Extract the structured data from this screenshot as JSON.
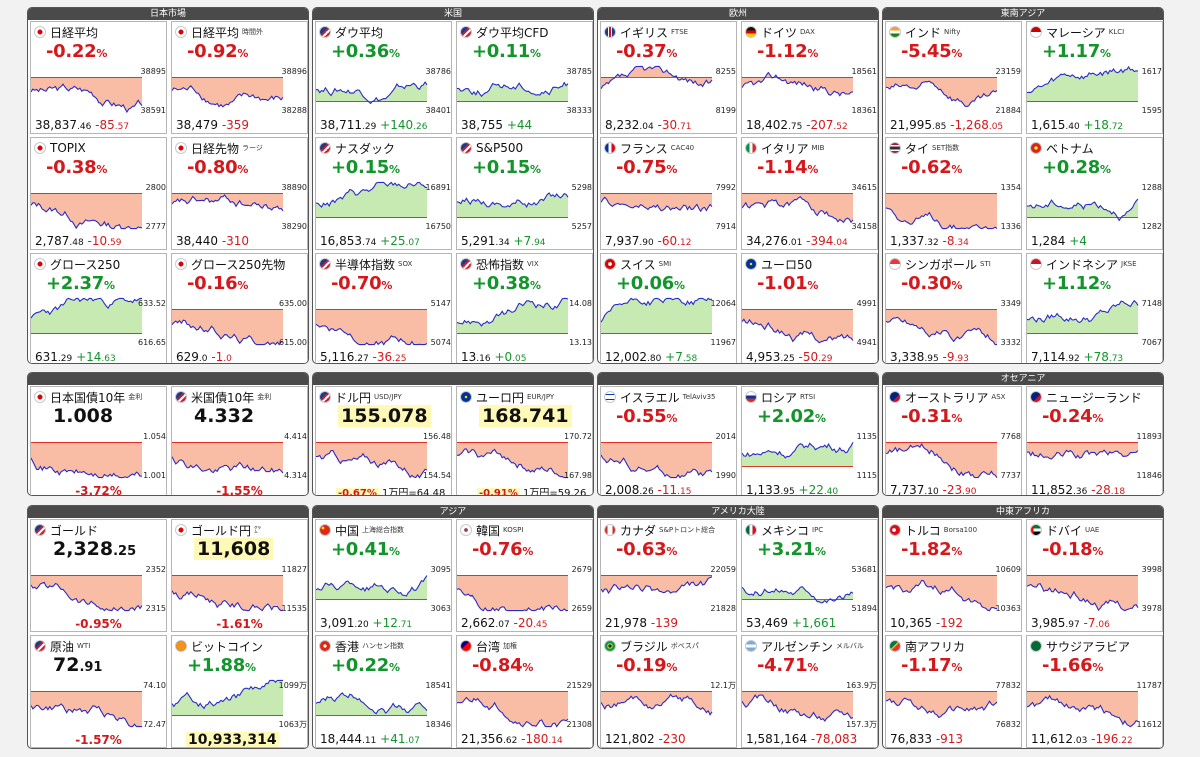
{
  "groups": [
    {
      "title": "日本市場",
      "cells": [
        {
          "name": "日経平均",
          "flag": "jp",
          "pct": "-0.22",
          "dir": "dn",
          "last_int": "38,837",
          "last_dec": ".46",
          "chg_int": "-85",
          "chg_dec": ".57",
          "ticks": [
            "38895",
            "38591"
          ]
        },
        {
          "name": "日経平均",
          "sub": "時間外",
          "flag": "jp",
          "pct": "-0.92",
          "dir": "dn",
          "last_int": "38,479",
          "last_dec": "",
          "chg_int": "-359",
          "chg_dec": "",
          "ticks": [
            "38896",
            "38288"
          ]
        },
        {
          "name": "TOPIX",
          "flag": "jp",
          "pct": "-0.38",
          "dir": "dn",
          "last_int": "2,787",
          "last_dec": ".48",
          "chg_int": "-10",
          "chg_dec": ".59",
          "ticks": [
            "2800",
            "2777"
          ]
        },
        {
          "name": "日経先物",
          "sub": "ラージ",
          "flag": "jp",
          "pct": "-0.80",
          "dir": "dn",
          "last_int": "38,440",
          "last_dec": "",
          "chg_int": "-310",
          "chg_dec": "",
          "ticks": [
            "38890",
            "38290"
          ]
        },
        {
          "name": "グロース250",
          "flag": "jp",
          "pct": "+2.37",
          "dir": "up",
          "last_int": "631",
          "last_dec": ".29",
          "chg_int": "+14",
          "chg_dec": ".63",
          "ticks": [
            "633.52",
            "616.65"
          ]
        },
        {
          "name": "グロース250先物",
          "flag": "jp",
          "pct": "-0.16",
          "dir": "dn",
          "last_int": "629",
          "last_dec": ".0",
          "chg_int": "-1",
          "chg_dec": ".0",
          "ticks": [
            "635.00",
            "615.00"
          ]
        }
      ]
    },
    {
      "title": "米国",
      "cells": [
        {
          "name": "ダウ平均",
          "flag": "us",
          "pct": "+0.36",
          "dir": "up",
          "last_int": "38,711",
          "last_dec": ".29",
          "chg_int": "+140",
          "chg_dec": ".26",
          "ticks": [
            "38786",
            "38401"
          ]
        },
        {
          "name": "ダウ平均CFD",
          "flag": "us",
          "pct": "+0.11",
          "dir": "up",
          "last_int": "38,755",
          "last_dec": "",
          "chg_int": "+44",
          "chg_dec": "",
          "ticks": [
            "38785",
            "38333"
          ]
        },
        {
          "name": "ナスダック",
          "flag": "us",
          "pct": "+0.15",
          "dir": "up",
          "last_int": "16,853",
          "last_dec": ".74",
          "chg_int": "+25",
          "chg_dec": ".07",
          "ticks": [
            "16891",
            "16750"
          ]
        },
        {
          "name": "S&P500",
          "flag": "us",
          "pct": "+0.15",
          "dir": "up",
          "last_int": "5,291",
          "last_dec": ".34",
          "chg_int": "+7",
          "chg_dec": ".94",
          "ticks": [
            "5298",
            "5257"
          ]
        },
        {
          "name": "半導体指数",
          "sub": "SOX",
          "flag": "us",
          "pct": "-0.70",
          "dir": "dn",
          "last_int": "5,116",
          "last_dec": ".27",
          "chg_int": "-36",
          "chg_dec": ".25",
          "ticks": [
            "5147",
            "5074"
          ]
        },
        {
          "name": "恐怖指数",
          "sub": "VIX",
          "flag": "us",
          "pct": "+0.38",
          "dir": "up",
          "last_int": "13",
          "last_dec": ".16",
          "chg_int": "+0",
          "chg_dec": ".05",
          "ticks": [
            "14.08",
            "13.13"
          ]
        }
      ]
    },
    {
      "title": "欧州",
      "cells": [
        {
          "name": "イギリス",
          "sub": "FTSE",
          "flag": "gb",
          "pct": "-0.37",
          "dir": "dn",
          "last_int": "8,232",
          "last_dec": ".04",
          "chg_int": "-30",
          "chg_dec": ".71",
          "ticks": [
            "8255",
            "8199"
          ]
        },
        {
          "name": "ドイツ",
          "sub": "DAX",
          "flag": "de",
          "pct": "-1.12",
          "dir": "dn",
          "last_int": "18,402",
          "last_dec": ".75",
          "chg_int": "-207",
          "chg_dec": ".52",
          "ticks": [
            "18561",
            "18361"
          ]
        },
        {
          "name": "フランス",
          "sub": "CAC40",
          "flag": "fr",
          "pct": "-0.75",
          "dir": "dn",
          "last_int": "7,937",
          "last_dec": ".90",
          "chg_int": "-60",
          "chg_dec": ".12",
          "ticks": [
            "7992",
            "7914"
          ]
        },
        {
          "name": "イタリア",
          "sub": "MIB",
          "flag": "it",
          "pct": "-1.14",
          "dir": "dn",
          "last_int": "34,276",
          "last_dec": ".01",
          "chg_int": "-394",
          "chg_dec": ".04",
          "ticks": [
            "34615",
            "34158"
          ]
        },
        {
          "name": "スイス",
          "sub": "SMI",
          "flag": "ch",
          "pct": "+0.06",
          "dir": "up",
          "last_int": "12,002",
          "last_dec": ".80",
          "chg_int": "+7",
          "chg_dec": ".58",
          "ticks": [
            "12064",
            "11967"
          ]
        },
        {
          "name": "ユーロ50",
          "flag": "eu",
          "pct": "-1.01",
          "dir": "dn",
          "last_int": "4,953",
          "last_dec": ".25",
          "chg_int": "-50",
          "chg_dec": ".29",
          "ticks": [
            "4991",
            "4941"
          ]
        }
      ]
    },
    {
      "title": "東南アジア",
      "cells": [
        {
          "name": "インド",
          "sub": "Nifty",
          "flag": "in",
          "pct": "-5.45",
          "dir": "dn",
          "last_int": "21,995",
          "last_dec": ".85",
          "chg_int": "-1,268",
          "chg_dec": ".05",
          "ticks": [
            "23159",
            "21884"
          ]
        },
        {
          "name": "マレーシア",
          "sub": "KLCI",
          "flag": "my",
          "pct": "+1.17",
          "dir": "up",
          "last_int": "1,615",
          "last_dec": ".40",
          "chg_int": "+18",
          "chg_dec": ".72",
          "ticks": [
            "1617",
            "1595"
          ]
        },
        {
          "name": "タイ",
          "sub": "SET指数",
          "flag": "th",
          "pct": "-0.62",
          "dir": "dn",
          "last_int": "1,337",
          "last_dec": ".32",
          "chg_int": "-8",
          "chg_dec": ".34",
          "ticks": [
            "1354",
            "1336"
          ]
        },
        {
          "name": "ベトナム",
          "flag": "vn",
          "pct": "+0.28",
          "dir": "up",
          "last_int": "1,284",
          "last_dec": "",
          "chg_int": "+4",
          "chg_dec": "",
          "ticks": [
            "1288",
            "1282"
          ]
        },
        {
          "name": "シンガポール",
          "sub": "STI",
          "flag": "sg",
          "pct": "-0.30",
          "dir": "dn",
          "last_int": "3,338",
          "last_dec": ".95",
          "chg_int": "-9",
          "chg_dec": ".93",
          "ticks": [
            "3349",
            "3332"
          ]
        },
        {
          "name": "インドネシア",
          "sub": "JKSE",
          "flag": "id",
          "pct": "+1.12",
          "dir": "up",
          "last_int": "7,114",
          "last_dec": ".92",
          "chg_int": "+78",
          "chg_dec": ".73",
          "ticks": [
            "7148",
            "7067"
          ]
        }
      ]
    },
    {
      "title": "",
      "cells": [
        {
          "name": "日本国債10年",
          "sub": "金利",
          "flag": "jp",
          "big_int": "1.008",
          "big_dec": "",
          "fchg": "-3.72%",
          "dir": "dn",
          "ticks": [
            "1.054",
            "1.001"
          ]
        },
        {
          "name": "米国債10年",
          "sub": "金利",
          "flag": "us",
          "big_int": "4.332",
          "big_dec": "",
          "fchg": "-1.55%",
          "dir": "dn",
          "ticks": [
            "4.414",
            "4.314"
          ]
        }
      ]
    },
    {
      "title": "",
      "cells": [
        {
          "name": "ドル円",
          "sub": "USD/JPY",
          "flag": "us",
          "big_int": "155.078",
          "big_dec": "",
          "hl": true,
          "fx_pct": "-0.67%",
          "fx_note": "1万円=64.48",
          "dir": "dn",
          "ticks": [
            "156.48",
            "154.54"
          ]
        },
        {
          "name": "ユーロ円",
          "sub": "EUR/JPY",
          "flag": "eu",
          "big_int": "168.741",
          "big_dec": "",
          "hl": true,
          "fx_pct": "-0.91%",
          "fx_note": "1万円=59.26",
          "dir": "dn",
          "ticks": [
            "170.72",
            "167.98"
          ]
        }
      ]
    },
    {
      "title": "",
      "cells": [
        {
          "name": "イスラエル",
          "sub": "TelAviv35",
          "flag": "il",
          "pct": "-0.55",
          "dir": "dn",
          "last_int": "2,008",
          "last_dec": ".26",
          "chg_int": "-11",
          "chg_dec": ".15",
          "ticks": [
            "2014",
            "1990"
          ]
        },
        {
          "name": "ロシア",
          "sub": "RTSI",
          "flag": "ru",
          "pct": "+2.02",
          "dir": "up",
          "last_int": "1,133",
          "last_dec": ".95",
          "chg_int": "+22",
          "chg_dec": ".40",
          "ticks": [
            "1135",
            "1115"
          ]
        }
      ]
    },
    {
      "title": "オセアニア",
      "cells": [
        {
          "name": "オーストラリア",
          "sub": "ASX",
          "flag": "au",
          "pct": "-0.31",
          "dir": "dn",
          "last_int": "7,737",
          "last_dec": ".10",
          "chg_int": "-23",
          "chg_dec": ".90",
          "ticks": [
            "7768",
            "7737"
          ]
        },
        {
          "name": "ニュージーランド",
          "flag": "nz",
          "pct": "-0.24",
          "dir": "dn",
          "last_int": "11,852",
          "last_dec": ".36",
          "chg_int": "-28",
          "chg_dec": ".18",
          "ticks": [
            "11893",
            "11846"
          ]
        }
      ]
    },
    {
      "title": "",
      "cells": [
        {
          "name": "ゴールド",
          "flag": "us",
          "big_int": "2,328",
          "big_dec": ".25",
          "fchg": "-0.95%",
          "dir": "dn",
          "ticks": [
            "2352",
            "2315"
          ]
        },
        {
          "name": "ゴールド円",
          "sub": "㌘",
          "flag": "jp",
          "big_int": "11,608",
          "big_dec": "",
          "hl": true,
          "fchg": "-1.61%",
          "dir": "dn",
          "ticks": [
            "11827",
            "11535"
          ]
        },
        {
          "name": "原油",
          "sub": "WTI",
          "flag": "us",
          "big_int": "72",
          "big_dec": ".91",
          "fchg": "-1.57%",
          "dir": "dn",
          "ticks": [
            "74.10",
            "72.47"
          ]
        },
        {
          "name": "ビットコイン",
          "flag": "btc",
          "pct": "+1.88",
          "dir": "up",
          "bigfoot": "10,933,314",
          "ticks": [
            "1099万",
            "1063万"
          ]
        }
      ]
    },
    {
      "title": "アジア",
      "cells": [
        {
          "name": "中国",
          "sub": "上海総合指数",
          "flag": "cn",
          "pct": "+0.41",
          "dir": "up",
          "last_int": "3,091",
          "last_dec": ".20",
          "chg_int": "+12",
          "chg_dec": ".71",
          "ticks": [
            "3095",
            "3063"
          ]
        },
        {
          "name": "韓国",
          "sub": "KOSPI",
          "flag": "kr",
          "pct": "-0.76",
          "dir": "dn",
          "last_int": "2,662",
          "last_dec": ".07",
          "chg_int": "-20",
          "chg_dec": ".45",
          "ticks": [
            "2679",
            "2659"
          ]
        },
        {
          "name": "香港",
          "sub": "ハンセン指数",
          "flag": "hk",
          "pct": "+0.22",
          "dir": "up",
          "last_int": "18,444",
          "last_dec": ".11",
          "chg_int": "+41",
          "chg_dec": ".07",
          "ticks": [
            "18541",
            "18346"
          ]
        },
        {
          "name": "台湾",
          "sub": "加権",
          "flag": "tw",
          "pct": "-0.84",
          "dir": "dn",
          "last_int": "21,356",
          "last_dec": ".62",
          "chg_int": "-180",
          "chg_dec": ".14",
          "ticks": [
            "21529",
            "21308"
          ]
        }
      ]
    },
    {
      "title": "アメリカ大陸",
      "cells": [
        {
          "name": "カナダ",
          "sub": "S&Pトロント総合",
          "flag": "ca",
          "pct": "-0.63",
          "dir": "dn",
          "last_int": "21,978",
          "last_dec": "",
          "chg_int": "-139",
          "chg_dec": "",
          "ticks": [
            "22059",
            "21828"
          ]
        },
        {
          "name": "メキシコ",
          "sub": "IPC",
          "flag": "mx",
          "pct": "+3.21",
          "dir": "up",
          "last_int": "53,469",
          "last_dec": "",
          "chg_int": "+1,661",
          "chg_dec": "",
          "ticks": [
            "53681",
            "51894"
          ]
        },
        {
          "name": "ブラジル",
          "sub": "ボベスパ",
          "flag": "br",
          "pct": "-0.19",
          "dir": "dn",
          "last_int": "121,802",
          "last_dec": "",
          "chg_int": "-230",
          "chg_dec": "",
          "ticks": [
            "12.1万",
            ""
          ]
        },
        {
          "name": "アルゼンチン",
          "sub": "メルバル",
          "flag": "ar",
          "pct": "-4.71",
          "dir": "dn",
          "last_int": "1,581,164",
          "last_dec": "",
          "chg_int": "-78,083",
          "chg_dec": "",
          "ticks": [
            "163.9万",
            "157.3万"
          ]
        }
      ]
    },
    {
      "title": "中東アフリカ",
      "cells": [
        {
          "name": "トルコ",
          "sub": "Borsa100",
          "flag": "tr",
          "pct": "-1.82",
          "dir": "dn",
          "last_int": "10,365",
          "last_dec": "",
          "chg_int": "-192",
          "chg_dec": "",
          "ticks": [
            "10609",
            "10363"
          ]
        },
        {
          "name": "ドバイ",
          "sub": "UAE",
          "flag": "ae",
          "pct": "-0.18",
          "dir": "dn",
          "last_int": "3,985",
          "last_dec": ".97",
          "chg_int": "-7",
          "chg_dec": ".06",
          "ticks": [
            "3998",
            "3978"
          ]
        },
        {
          "name": "南アフリカ",
          "flag": "za",
          "pct": "-1.17",
          "dir": "dn",
          "last_int": "76,833",
          "last_dec": "",
          "chg_int": "-913",
          "chg_dec": "",
          "ticks": [
            "77832",
            "76832"
          ]
        },
        {
          "name": "サウジアラビア",
          "flag": "sa",
          "pct": "-1.66",
          "dir": "dn",
          "last_int": "11,612",
          "last_dec": ".03",
          "chg_int": "-196",
          "chg_dec": ".22",
          "ticks": [
            "11787",
            "11612"
          ]
        }
      ]
    }
  ],
  "colors": {
    "up": "#14942c",
    "down": "#d4181c",
    "fill_down": "#f7a585",
    "fill_up": "#b4e39a",
    "line": "#2a2ac8",
    "header": "#4a4a4a"
  }
}
